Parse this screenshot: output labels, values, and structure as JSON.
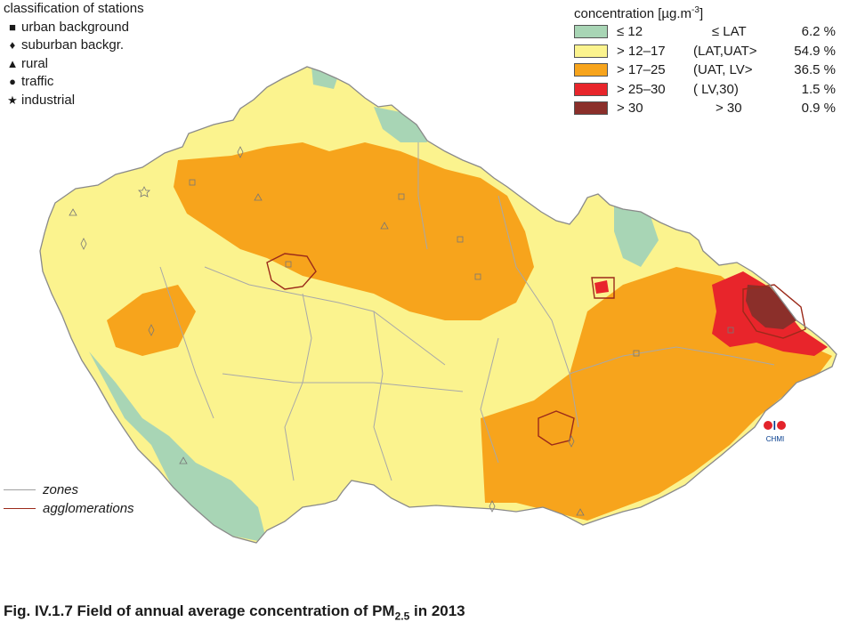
{
  "station_legend": {
    "title": "classification of stations",
    "items": [
      {
        "icon": "square-icon",
        "symbol": "■",
        "label": "urban background"
      },
      {
        "icon": "diamond-icon",
        "symbol": "♦",
        "label": "suburban backgr."
      },
      {
        "icon": "triangle-icon",
        "symbol": "▲",
        "label": "rural"
      },
      {
        "icon": "circle-icon",
        "symbol": "●",
        "label": "traffic"
      },
      {
        "icon": "star-icon",
        "symbol": "★",
        "label": "industrial"
      }
    ]
  },
  "concentration_legend": {
    "title": "concentration [µg.m",
    "title_sup": "-3",
    "title_end": "]",
    "items": [
      {
        "color": "#a8d5b5",
        "range": "≤ 12",
        "label": "     ≤ LAT",
        "pct": "6.2 %"
      },
      {
        "color": "#fbf38e",
        "range": "> 12–17",
        "label": "(LAT,UAT>",
        "pct": "54.9 %"
      },
      {
        "color": "#f7a41c",
        "range": "> 17–25",
        "label": "(UAT, LV>",
        "pct": "36.5 %"
      },
      {
        "color": "#e8252b",
        "range": "> 25–30",
        "label": "( LV,30)",
        "pct": "1.5 %"
      },
      {
        "color": "#8b2f2a",
        "range": "> 30",
        "label": "      > 30",
        "pct": "0.9 %"
      }
    ]
  },
  "line_legend": {
    "items": [
      {
        "color": "#a0a0a0",
        "label": "zones"
      },
      {
        "color": "#9b2a1a",
        "label": "agglomerations"
      }
    ]
  },
  "logo": {
    "text": "CHMI"
  },
  "caption": {
    "text": "Fig. IV.1.7  Field of annual average concentration of PM",
    "sub": "2.5",
    "end": " in 2013"
  }
}
